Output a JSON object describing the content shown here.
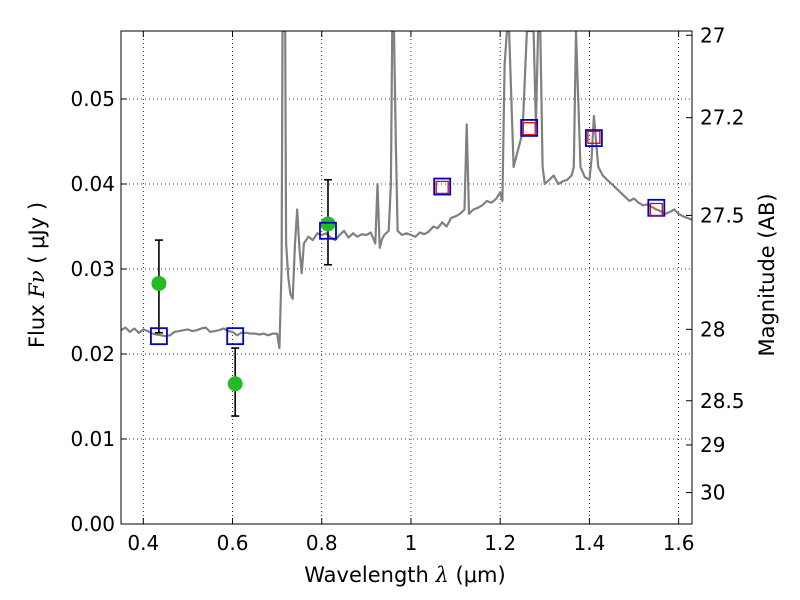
{
  "chart_data": {
    "type": "line",
    "xlabel": {
      "prefix": "Wavelength ",
      "symbol": "λ",
      "unit": " (μm)"
    },
    "ylabel": {
      "prefix": "Flux ",
      "symbol": "Fν",
      "unit": " ( μJy )"
    },
    "y2label": "Magnitude (AB)",
    "xlim": [
      0.35,
      1.63
    ],
    "ylim": [
      0.0,
      0.058
    ],
    "grid": true,
    "x_ticks": [
      0.4,
      0.6,
      0.8,
      1.0,
      1.2,
      1.4,
      1.6
    ],
    "x_tick_labels": [
      "0.4",
      "0.6",
      "0.8",
      "1",
      "1.2",
      "1.4",
      "1.6"
    ],
    "y_ticks": [
      0.0,
      0.01,
      0.02,
      0.03,
      0.04,
      0.05
    ],
    "y_tick_labels": [
      "0.00",
      "0.01",
      "0.02",
      "0.03",
      "0.04",
      "0.05"
    ],
    "magnitude_ticks": [
      {
        "label": "27",
        "flux": 0.0575
      },
      {
        "label": "27.2",
        "flux": 0.0478
      },
      {
        "label": "27.5",
        "flux": 0.0363
      },
      {
        "label": "28",
        "flux": 0.0229
      },
      {
        "label": "28.5",
        "flux": 0.0145
      },
      {
        "label": "29",
        "flux": 0.0093
      },
      {
        "label": "30",
        "flux": 0.0037
      }
    ],
    "series": [
      {
        "name": "model spectrum",
        "kind": "line",
        "color": "#808080",
        "x": [
          0.35,
          0.36,
          0.37,
          0.38,
          0.39,
          0.4,
          0.41,
          0.42,
          0.43,
          0.44,
          0.45,
          0.46,
          0.47,
          0.48,
          0.49,
          0.5,
          0.51,
          0.52,
          0.53,
          0.54,
          0.55,
          0.56,
          0.57,
          0.58,
          0.59,
          0.6,
          0.61,
          0.62,
          0.63,
          0.64,
          0.65,
          0.66,
          0.67,
          0.68,
          0.69,
          0.7,
          0.705,
          0.71,
          0.712,
          0.715,
          0.718,
          0.72,
          0.725,
          0.73,
          0.735,
          0.74,
          0.745,
          0.75,
          0.755,
          0.76,
          0.77,
          0.78,
          0.79,
          0.8,
          0.81,
          0.82,
          0.83,
          0.84,
          0.85,
          0.86,
          0.87,
          0.88,
          0.89,
          0.9,
          0.91,
          0.92,
          0.925,
          0.93,
          0.935,
          0.94,
          0.95,
          0.955,
          0.958,
          0.962,
          0.966,
          0.97,
          0.98,
          0.99,
          1.0,
          1.01,
          1.02,
          1.03,
          1.04,
          1.05,
          1.06,
          1.07,
          1.08,
          1.09,
          1.1,
          1.11,
          1.12,
          1.125,
          1.13,
          1.14,
          1.15,
          1.16,
          1.17,
          1.18,
          1.19,
          1.2,
          1.205,
          1.21,
          1.215,
          1.22,
          1.23,
          1.24,
          1.25,
          1.26,
          1.27,
          1.275,
          1.28,
          1.285,
          1.29,
          1.295,
          1.3,
          1.31,
          1.32,
          1.33,
          1.34,
          1.35,
          1.36,
          1.365,
          1.37,
          1.375,
          1.38,
          1.39,
          1.4,
          1.405,
          1.41,
          1.42,
          1.43,
          1.44,
          1.45,
          1.46,
          1.47,
          1.48,
          1.49,
          1.5,
          1.51,
          1.52,
          1.53,
          1.54,
          1.55,
          1.56,
          1.57,
          1.58,
          1.59,
          1.6,
          1.61,
          1.62,
          1.63
        ],
        "y": [
          0.0228,
          0.0231,
          0.0226,
          0.023,
          0.0225,
          0.0229,
          0.0227,
          0.0224,
          0.0223,
          0.0222,
          0.0221,
          0.0222,
          0.0226,
          0.0227,
          0.0228,
          0.0229,
          0.0227,
          0.0228,
          0.023,
          0.0231,
          0.0226,
          0.0227,
          0.0228,
          0.023,
          0.0227,
          0.0226,
          0.0222,
          0.0225,
          0.0225,
          0.0224,
          0.0224,
          0.0223,
          0.0224,
          0.0222,
          0.0224,
          0.0224,
          0.0207,
          0.03,
          0.058,
          0.058,
          0.058,
          0.033,
          0.029,
          0.027,
          0.0265,
          0.033,
          0.037,
          0.0325,
          0.0295,
          0.033,
          0.0338,
          0.0334,
          0.0342,
          0.034,
          0.0342,
          0.0337,
          0.0334,
          0.034,
          0.0345,
          0.0337,
          0.0342,
          0.0338,
          0.0341,
          0.034,
          0.0343,
          0.033,
          0.04,
          0.0325,
          0.0335,
          0.034,
          0.0345,
          0.04,
          0.058,
          0.058,
          0.045,
          0.0345,
          0.034,
          0.0342,
          0.034,
          0.0338,
          0.0343,
          0.0341,
          0.0344,
          0.035,
          0.0348,
          0.0355,
          0.035,
          0.036,
          0.0362,
          0.0365,
          0.037,
          0.047,
          0.0365,
          0.037,
          0.0372,
          0.0375,
          0.038,
          0.0378,
          0.0382,
          0.039,
          0.038,
          0.054,
          0.058,
          0.058,
          0.042,
          0.044,
          0.046,
          0.058,
          0.058,
          0.058,
          0.047,
          0.058,
          0.058,
          0.042,
          0.04,
          0.0405,
          0.041,
          0.04,
          0.0403,
          0.0405,
          0.041,
          0.042,
          0.058,
          0.05,
          0.042,
          0.0408,
          0.0405,
          0.043,
          0.048,
          0.042,
          0.041,
          0.0405,
          0.04,
          0.0395,
          0.039,
          0.0385,
          0.038,
          0.0383,
          0.0378,
          0.0375,
          0.0376,
          0.0373,
          0.037,
          0.0368,
          0.0365,
          0.0367,
          0.037,
          0.0365,
          0.0362,
          0.036,
          0.0358
        ]
      },
      {
        "name": "measured photometry",
        "kind": "points-errorbar",
        "color": "#22bb22",
        "x": [
          0.435,
          0.606,
          0.814
        ],
        "y": [
          0.0283,
          0.0165,
          0.0353
        ],
        "yerr_low": [
          0.0058,
          0.0038,
          0.0048
        ],
        "yerr_high": [
          0.0051,
          0.0042,
          0.0052
        ]
      },
      {
        "name": "model photometry (blue squares)",
        "kind": "points",
        "marker": "square-open",
        "color": "#0000cc",
        "x": [
          0.435,
          0.606,
          0.814,
          1.07,
          1.265,
          1.41,
          1.55
        ],
        "y": [
          0.0221,
          0.0221,
          0.0345,
          0.0397,
          0.0466,
          0.0454,
          0.0372
        ]
      },
      {
        "name": "measured photometry (red squares)",
        "kind": "points",
        "marker": "square-open",
        "color": "#dd0000",
        "x": [
          1.07,
          1.265,
          1.41,
          1.55
        ],
        "y": [
          0.0396,
          0.0465,
          0.0455,
          0.037
        ]
      }
    ]
  }
}
